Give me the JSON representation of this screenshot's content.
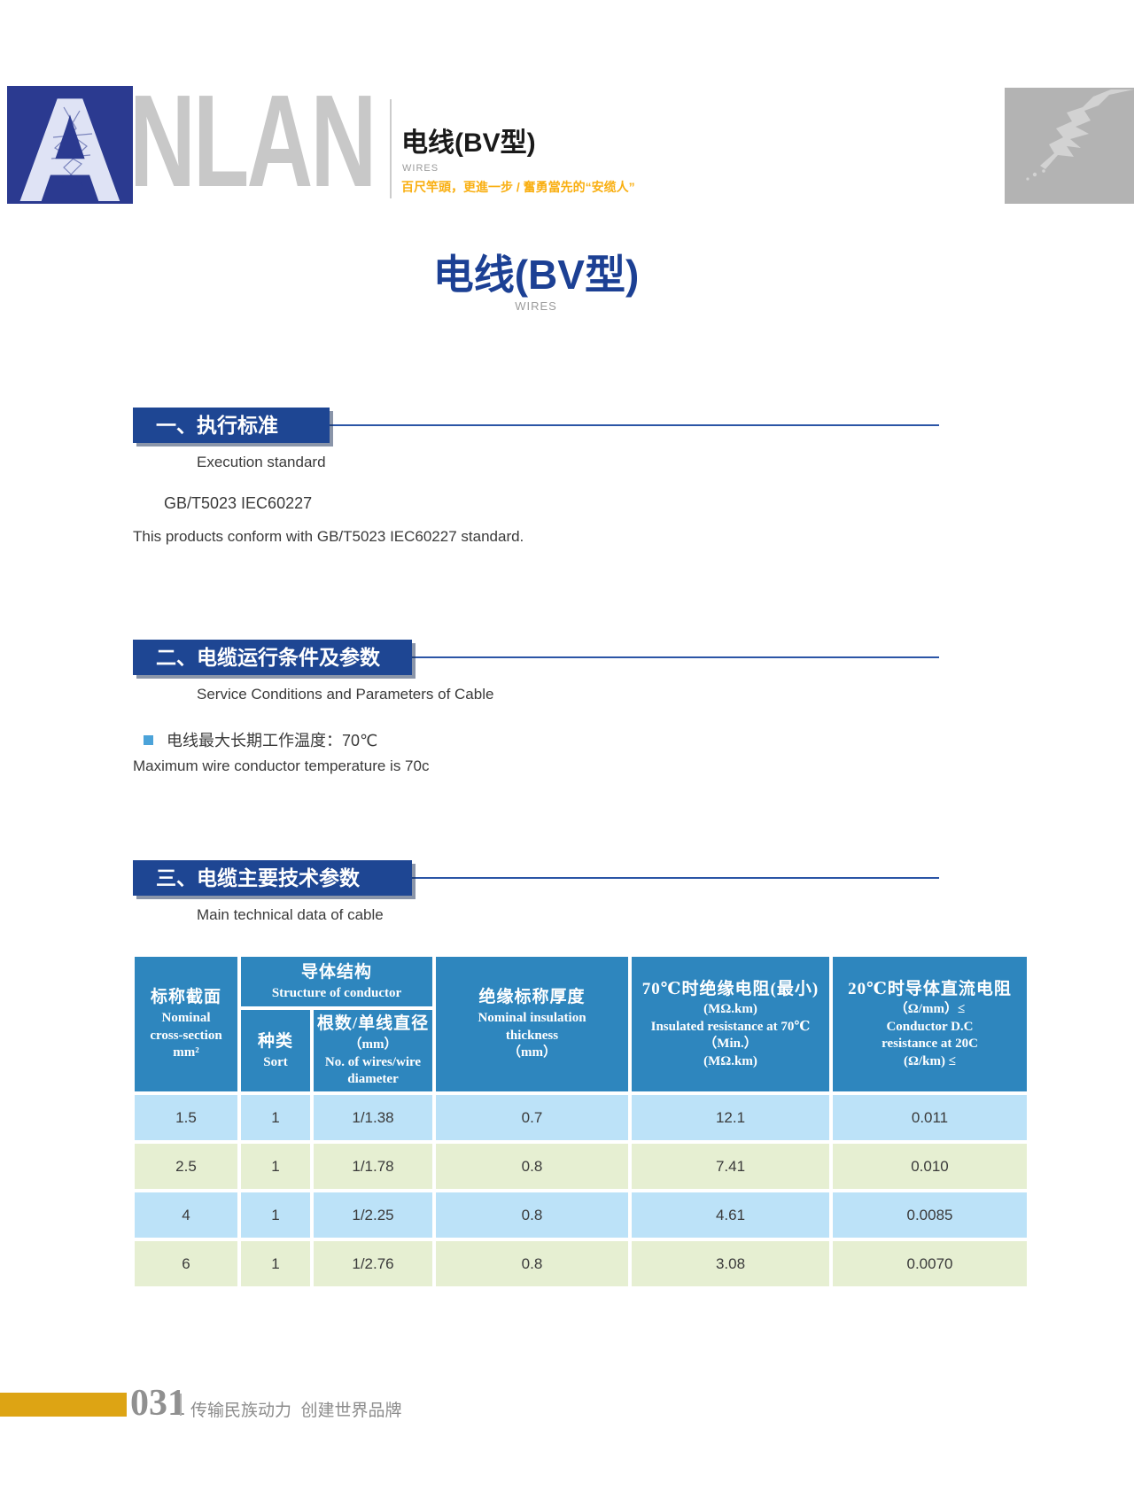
{
  "header": {
    "brand_a": "A",
    "brand_rest": "NLAN",
    "product_title_cn": "电线(BV型)",
    "product_title_en": "WIRES",
    "tagline": "百尺竿頭，更進一步 / 奮勇當先的“安缆人”"
  },
  "page_title": {
    "cn": "电线(BV型)",
    "en": "WIRES"
  },
  "sections": [
    {
      "heading_cn": "一、执行标准",
      "heading_en": "Execution standard",
      "line1": "GB/T5023  IEC60227",
      "line2": "This products conform with GB/T5023  IEC60227 standard."
    },
    {
      "heading_cn": "二、电缆运行条件及参数",
      "heading_en": "Service Conditions and Parameters of Cable",
      "bullet_cn": "电线最大长期工作温度：70℃",
      "bullet_en": "Maximum wire conductor temperature is 70c"
    },
    {
      "heading_cn": "三、电缆主要技术参数",
      "heading_en": "Main technical data of cable"
    }
  ],
  "table": {
    "headers": {
      "nominal_cross_section": [
        "标称截面",
        "Nominal",
        "cross-section",
        "mm²"
      ],
      "structure_of_conductor": [
        "导体结构",
        "Structure of conductor"
      ],
      "sort": [
        "种类",
        "Sort"
      ],
      "wires_diameter": [
        "根数/单线直径",
        "（mm）",
        "No. of wires/wire",
        "diameter"
      ],
      "insulation_thickness": [
        "绝缘标称厚度",
        "Nominal insulation",
        "thickness",
        "（mm）"
      ],
      "insulation_resistance": [
        "70℃时绝缘电阻(最小)",
        "(MΩ.km)",
        "Insulated resistance at 70℃",
        "（Min.）",
        "(MΩ.km)"
      ],
      "dc_resistance": [
        "20℃时导体直流电阻",
        "（Ω/mm）≤",
        "Conductor D.C",
        "resistance at 20C",
        "(Ω/km) ≤"
      ]
    },
    "rows": [
      [
        "1.5",
        "1",
        "1/1.38",
        "0.7",
        "12.1",
        "0.011"
      ],
      [
        "2.5",
        "1",
        "1/1.78",
        "0.8",
        "7.41",
        "0.010"
      ],
      [
        "4",
        "1",
        "1/2.25",
        "0.8",
        "4.61",
        "0.0085"
      ],
      [
        "6",
        "1",
        "1/2.76",
        "0.8",
        "3.08",
        "0.0070"
      ]
    ]
  },
  "footer": {
    "page_number": "031",
    "tagline": "传输民族动力  创建世界品牌"
  },
  "colors": {
    "logo_blue": "#2B3A90",
    "brand_gray": "#C8C8C8",
    "title_blue": "#1C4094",
    "badge_blue": "#1E4693",
    "rule_blue": "#2B55A6",
    "tagline_orange": "#F9AF12",
    "bullet_blue": "#4BA3D9",
    "table_header_blue": "#2E86BE",
    "row_blue": "#BCE2F8",
    "row_green": "#E6EFD2",
    "gold": "#DDA414",
    "footer_gray": "#8C8C8C",
    "map_gray": "#B3B3B3",
    "map_land": "#D2D2D2"
  }
}
